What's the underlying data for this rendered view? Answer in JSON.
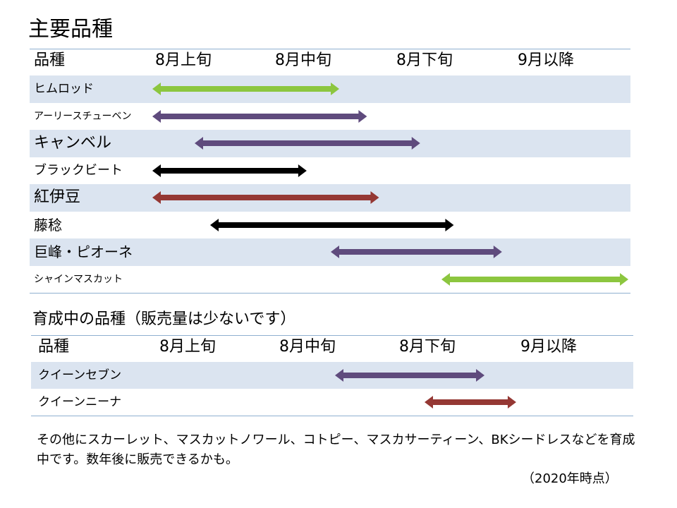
{
  "title": "主要品種",
  "main_table": {
    "headers": [
      "品種",
      "8月上旬",
      "8月中旬",
      "8月下旬",
      "9月以降"
    ],
    "rows": [
      {
        "name": "ヒムロッド",
        "start": 0.0,
        "end": 1.55,
        "color": "#8cc63f"
      },
      {
        "name": "アーリースチューベン",
        "start": 0.0,
        "end": 1.78,
        "color": "#5f4b7d"
      },
      {
        "name": "キャンベル",
        "start": 0.35,
        "end": 2.22,
        "color": "#5f4b7d"
      },
      {
        "name": "ブラックビート",
        "start": 0.0,
        "end": 1.28,
        "color": "#000000"
      },
      {
        "name": "紅伊豆",
        "start": 0.0,
        "end": 1.88,
        "color": "#953834"
      },
      {
        "name": "藤稔",
        "start": 0.48,
        "end": 2.5,
        "color": "#000000"
      },
      {
        "name": "巨峰・ピオーネ",
        "start": 1.48,
        "end": 2.9,
        "color": "#5f4b7d"
      },
      {
        "name": "シャインマスカット",
        "start": 2.4,
        "end": 3.95,
        "color": "#8cc63f"
      }
    ]
  },
  "sub_title": "育成中の品種（販売量は少ないです）",
  "sub_table": {
    "headers": [
      "品種",
      "8月上旬",
      "8月中旬",
      "8月下旬",
      "9月以降"
    ],
    "rows": [
      {
        "name": "クイーンセブン",
        "start": 1.48,
        "end": 2.72,
        "color": "#5f4b7d"
      },
      {
        "name": "クイーンニーナ",
        "start": 2.22,
        "end": 2.98,
        "color": "#953834"
      }
    ]
  },
  "note": "その他にスカーレット、マスカットノワール、コトピー、マスカサーティーン、BKシードレスなどを育成中です。数年後に販売できるかも。",
  "stamp": "（2020年時点）"
}
